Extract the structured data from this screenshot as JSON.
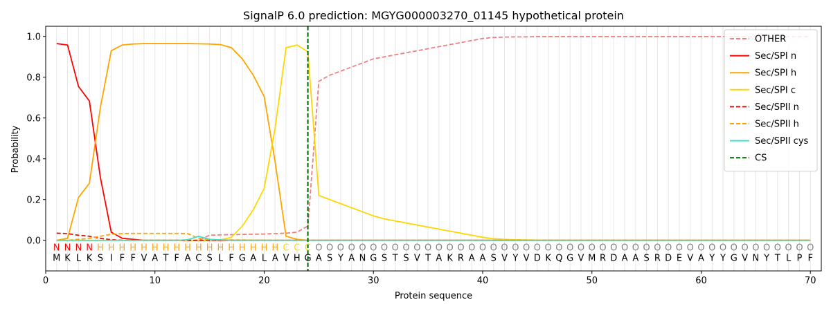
{
  "chart_data": {
    "type": "line",
    "title": "SignalP 6.0 prediction: MGYG000003270_01145 hypothetical protein",
    "xlabel": "Protein sequence",
    "ylabel": "Probability",
    "xlim": [
      0,
      71
    ],
    "ylim": [
      -0.15,
      1.05
    ],
    "xticks": [
      0,
      10,
      20,
      30,
      40,
      50,
      60,
      70
    ],
    "yticks": [
      0.0,
      0.2,
      0.4,
      0.6,
      0.8,
      1.0
    ],
    "ytick_labels": [
      "0.0",
      "0.2",
      "0.4",
      "0.6",
      "0.8",
      "1.0"
    ],
    "legend_position": "top-right",
    "vertical_gridlines": "one per residue position",
    "sequence": [
      "M",
      "K",
      "L",
      "K",
      "S",
      "I",
      "F",
      "F",
      "V",
      "A",
      "T",
      "F",
      "A",
      "C",
      "S",
      "L",
      "F",
      "G",
      "A",
      "L",
      "A",
      "V",
      "H",
      "G",
      "A",
      "S",
      "Y",
      "A",
      "N",
      "G",
      "S",
      "T",
      "S",
      "V",
      "T",
      "A",
      "K",
      "R",
      "A",
      "A",
      "S",
      "V",
      "Y",
      "V",
      "D",
      "K",
      "Q",
      "G",
      "V",
      "M",
      "R",
      "D",
      "A",
      "A",
      "S",
      "R",
      "D",
      "E",
      "V",
      "A",
      "Y",
      "Y",
      "G",
      "V",
      "N",
      "Y",
      "T",
      "L",
      "P",
      "F"
    ],
    "labels": [
      "N",
      "N",
      "N",
      "N",
      "H",
      "H",
      "H",
      "H",
      "H",
      "H",
      "H",
      "H",
      "H",
      "H",
      "H",
      "H",
      "H",
      "H",
      "H",
      "H",
      "H",
      "C",
      "C",
      "C",
      "O",
      "O",
      "O",
      "O",
      "O",
      "O",
      "O",
      "O",
      "O",
      "O",
      "O",
      "O",
      "O",
      "O",
      "O",
      "O",
      "O",
      "O",
      "O",
      "O",
      "O",
      "O",
      "O",
      "O",
      "O",
      "O",
      "O",
      "O",
      "O",
      "O",
      "O",
      "O",
      "O",
      "O",
      "O",
      "O",
      "O",
      "O",
      "O",
      "O",
      "O",
      "O",
      "O",
      "O",
      "O",
      "O"
    ],
    "label_colors": {
      "N": "#ff0000",
      "H": "#ffa500",
      "C": "#ffd700",
      "O": "#808080"
    },
    "cs_position": 24,
    "series": [
      {
        "name": "OTHER",
        "color": "#f08080",
        "dash": "dashed",
        "values": [
          0.0,
          0.0,
          0.0,
          0.0,
          0.0,
          0.0,
          0.0,
          0.0,
          0.0,
          0.0,
          0.0,
          0.0,
          0.0,
          0.0,
          0.025,
          0.027,
          0.028,
          0.029,
          0.03,
          0.031,
          0.033,
          0.035,
          0.04,
          0.07,
          0.78,
          0.81,
          0.83,
          0.85,
          0.87,
          0.89,
          0.9,
          0.91,
          0.92,
          0.93,
          0.94,
          0.95,
          0.96,
          0.97,
          0.98,
          0.99,
          0.995,
          0.997,
          0.998,
          0.998,
          0.999,
          0.999,
          0.999,
          0.999,
          0.999,
          0.999,
          0.999,
          0.999,
          0.999,
          0.999,
          0.999,
          0.999,
          0.999,
          0.999,
          0.999,
          0.999,
          0.999,
          0.999,
          0.999,
          0.999,
          0.999,
          0.999,
          0.999,
          0.999,
          0.999,
          0.999
        ]
      },
      {
        "name": "Sec/SPI n",
        "color": "#ff0000",
        "dash": "solid",
        "values": [
          0.965,
          0.958,
          0.755,
          0.683,
          0.31,
          0.04,
          0.01,
          0.005,
          0.0,
          0.0,
          0.0,
          0.0,
          0.0,
          0.0,
          0.0,
          0.0,
          0.0,
          0.0,
          0.0,
          0.0,
          0.0,
          0.0,
          0.0,
          0.0,
          0.0,
          0.0,
          0.0,
          0.0,
          0.0,
          0.0,
          0.0,
          0.0,
          0.0,
          0.0,
          0.0,
          0.0,
          0.0,
          0.0,
          0.0,
          0.0,
          0.0,
          0.0,
          0.0,
          0.0,
          0.0,
          0.0,
          0.0,
          0.0,
          0.0,
          0.0,
          0.0,
          0.0,
          0.0,
          0.0,
          0.0,
          0.0,
          0.0,
          0.0,
          0.0,
          0.0,
          0.0,
          0.0,
          0.0,
          0.0,
          0.0,
          0.0,
          0.0,
          0.0,
          0.0,
          0.0
        ]
      },
      {
        "name": "Sec/SPI h",
        "color": "#ffa500",
        "dash": "solid",
        "values": [
          0.0,
          0.01,
          0.21,
          0.28,
          0.65,
          0.93,
          0.958,
          0.963,
          0.965,
          0.965,
          0.965,
          0.965,
          0.965,
          0.964,
          0.963,
          0.96,
          0.945,
          0.89,
          0.81,
          0.705,
          0.385,
          0.02,
          0.005,
          0.0,
          0.0,
          0.0,
          0.0,
          0.0,
          0.0,
          0.0,
          0.0,
          0.0,
          0.0,
          0.0,
          0.0,
          0.0,
          0.0,
          0.0,
          0.0,
          0.0,
          0.0,
          0.0,
          0.0,
          0.0,
          0.0,
          0.0,
          0.0,
          0.0,
          0.0,
          0.0,
          0.0,
          0.0,
          0.0,
          0.0,
          0.0,
          0.0,
          0.0,
          0.0,
          0.0,
          0.0,
          0.0,
          0.0,
          0.0,
          0.0,
          0.0,
          0.0,
          0.0,
          0.0,
          0.0,
          0.0
        ]
      },
      {
        "name": "Sec/SPI c",
        "color": "#ffd700",
        "dash": "solid",
        "values": [
          0.0,
          0.0,
          0.0,
          0.0,
          0.0,
          0.0,
          0.0,
          0.0,
          0.0,
          0.0,
          0.0,
          0.0,
          0.0,
          0.0,
          0.0,
          0.003,
          0.015,
          0.07,
          0.15,
          0.255,
          0.55,
          0.945,
          0.958,
          0.925,
          0.22,
          0.2,
          0.18,
          0.16,
          0.14,
          0.12,
          0.105,
          0.095,
          0.085,
          0.075,
          0.065,
          0.055,
          0.045,
          0.035,
          0.025,
          0.015,
          0.008,
          0.005,
          0.003,
          0.002,
          0.001,
          0.0,
          0.0,
          0.0,
          0.0,
          0.0,
          0.0,
          0.0,
          0.0,
          0.0,
          0.0,
          0.0,
          0.0,
          0.0,
          0.0,
          0.0,
          0.0,
          0.0,
          0.0,
          0.0,
          0.0,
          0.0,
          0.0,
          0.0,
          0.0,
          0.0
        ]
      },
      {
        "name": "Sec/SPII n",
        "color": "#e01010",
        "dash": "dashed",
        "values": [
          0.035,
          0.033,
          0.025,
          0.02,
          0.01,
          0.003,
          0.0,
          0.0,
          0.0,
          0.0,
          0.0,
          0.0,
          0.0,
          0.0,
          0.0,
          0.0,
          0.0,
          0.0,
          0.0,
          0.0,
          0.0,
          0.0,
          0.0,
          0.0,
          0.0,
          0.0,
          0.0,
          0.0,
          0.0,
          0.0,
          0.0,
          0.0,
          0.0,
          0.0,
          0.0,
          0.0,
          0.0,
          0.0,
          0.0,
          0.0,
          0.0,
          0.0,
          0.0,
          0.0,
          0.0,
          0.0,
          0.0,
          0.0,
          0.0,
          0.0,
          0.0,
          0.0,
          0.0,
          0.0,
          0.0,
          0.0,
          0.0,
          0.0,
          0.0,
          0.0,
          0.0,
          0.0,
          0.0,
          0.0,
          0.0,
          0.0,
          0.0,
          0.0,
          0.0,
          0.0
        ]
      },
      {
        "name": "Sec/SPII h",
        "color": "#ffa500",
        "dash": "dashed",
        "values": [
          0.0,
          0.0,
          0.005,
          0.01,
          0.02,
          0.03,
          0.033,
          0.034,
          0.034,
          0.034,
          0.034,
          0.034,
          0.033,
          0.01,
          0.003,
          0.002,
          0.002,
          0.002,
          0.001,
          0.001,
          0.0,
          0.0,
          0.0,
          0.0,
          0.0,
          0.0,
          0.0,
          0.0,
          0.0,
          0.0,
          0.0,
          0.0,
          0.0,
          0.0,
          0.0,
          0.0,
          0.0,
          0.0,
          0.0,
          0.0,
          0.0,
          0.0,
          0.0,
          0.0,
          0.0,
          0.0,
          0.0,
          0.0,
          0.0,
          0.0,
          0.0,
          0.0,
          0.0,
          0.0,
          0.0,
          0.0,
          0.0,
          0.0,
          0.0,
          0.0,
          0.0,
          0.0,
          0.0,
          0.0,
          0.0,
          0.0,
          0.0,
          0.0,
          0.0,
          0.0
        ]
      },
      {
        "name": "Sec/SPII cys",
        "color": "#40e0d0",
        "dash": "solid",
        "values": [
          0.0,
          0.0,
          0.0,
          0.0,
          0.0,
          0.0,
          0.0,
          0.0,
          0.0,
          0.0,
          0.0,
          0.0,
          0.003,
          0.02,
          0.005,
          0.002,
          0.0,
          0.0,
          0.0,
          0.0,
          0.0,
          0.0,
          0.0,
          0.0,
          0.0,
          0.0,
          0.0,
          0.0,
          0.0,
          0.0,
          0.0,
          0.0,
          0.0,
          0.0,
          0.0,
          0.0,
          0.0,
          0.0,
          0.0,
          0.0,
          0.0,
          0.0,
          0.0,
          0.0,
          0.0,
          0.0,
          0.0,
          0.0,
          0.0,
          0.0,
          0.0,
          0.0,
          0.0,
          0.0,
          0.0,
          0.0,
          0.0,
          0.0,
          0.0,
          0.0,
          0.0,
          0.0,
          0.0,
          0.0,
          0.0,
          0.0,
          0.0,
          0.0,
          0.0,
          0.0
        ]
      },
      {
        "name": "CS",
        "color": "#006400",
        "dash": "dashed",
        "kind": "vline",
        "x": 24
      }
    ]
  }
}
